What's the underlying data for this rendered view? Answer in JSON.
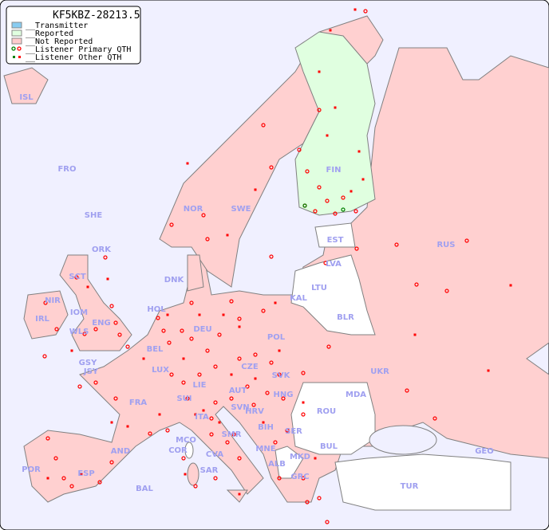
{
  "title": "KF5KBZ-28213.5",
  "legend": {
    "items": [
      {
        "label": "__Transmitter",
        "color": "#88ccf0"
      },
      {
        "label": "__Reported",
        "color": "#e0ffe0"
      },
      {
        "label": "__Not Reported",
        "color": "#ffcccc"
      },
      {
        "label": "__Listener Primary QTH",
        "colors": [
          "#008000",
          "#ff0000"
        ]
      },
      {
        "label": "__Listener Other QTH",
        "colors": [
          "#008000",
          "#ff0000"
        ]
      }
    ]
  },
  "colors": {
    "sea": "#f0f0ff",
    "not_reported": "#ffd0d0",
    "reported": "#e0ffe0",
    "no_data": "#ffffff",
    "border": "#808080",
    "label": "#a0a0f0",
    "listener": "#ff0000"
  },
  "countries": {
    "reported": [
      "FIN"
    ],
    "labels": [
      "ISL",
      "FRO",
      "SHE",
      "ORK",
      "SCT",
      "NIR",
      "IRL",
      "IOM",
      "WLS",
      "ENG",
      "HOL",
      "BEL",
      "LUX",
      "GSY",
      "JSY",
      "DNK",
      "NOR",
      "SWE",
      "FIN",
      "EST",
      "LVA",
      "LTU",
      "KAL",
      "BLR",
      "RUS",
      "POL",
      "DEU",
      "CZE",
      "SVK",
      "AUT",
      "LIE",
      "SUI",
      "FRA",
      "HNG",
      "SVN",
      "HRV",
      "ITA",
      "SMR",
      "BIH",
      "SER",
      "ROU",
      "MDA",
      "UKR",
      "BUL",
      "MKD",
      "MNE",
      "ALB",
      "GRC",
      "TUR",
      "GEO",
      "AND",
      "ESP",
      "POR",
      "COR",
      "MCO",
      "CVA",
      "SAR",
      "BAL"
    ]
  }
}
